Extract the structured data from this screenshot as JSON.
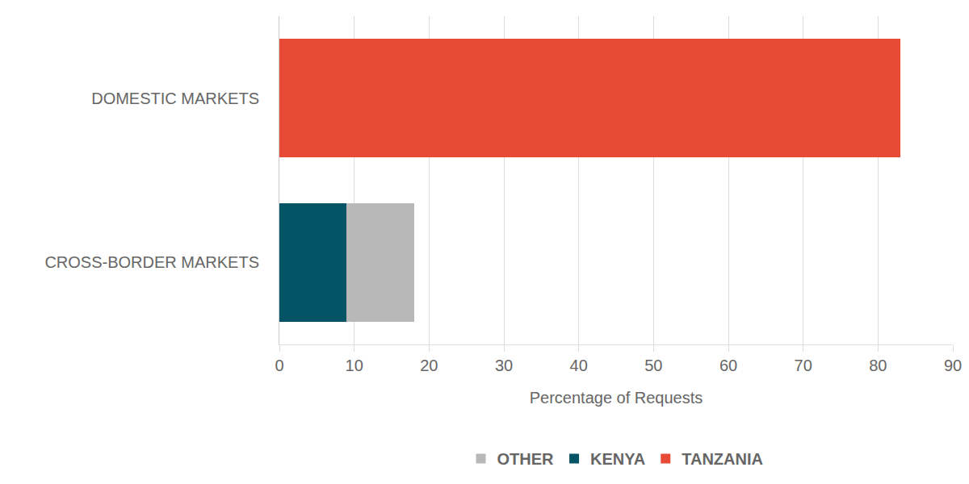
{
  "chart_data": {
    "type": "bar",
    "orientation": "horizontal",
    "stacked": true,
    "x_label": "Percentage of Requests",
    "categories": [
      "DOMESTIC MARKETS",
      "CROSS-BORDER MARKETS"
    ],
    "series": [
      {
        "name": "TANZANIA",
        "color": "#e84b35",
        "values": [
          83,
          null
        ]
      },
      {
        "name": "KENYA",
        "color": "#035566",
        "values": [
          null,
          9
        ]
      },
      {
        "name": "OTHER",
        "color": "#b8b8b8",
        "values": [
          null,
          9
        ]
      }
    ],
    "xlim": [
      0,
      90
    ],
    "xticks": [
      0,
      10,
      20,
      30,
      40,
      50,
      60,
      70,
      80,
      90
    ],
    "grid": true,
    "legend": "bottom"
  }
}
